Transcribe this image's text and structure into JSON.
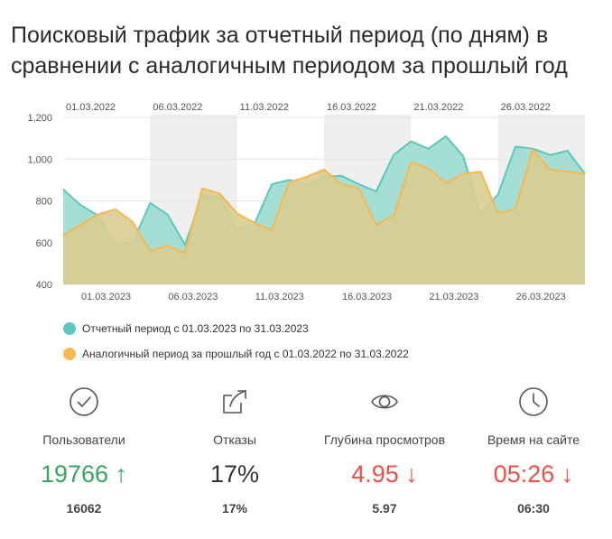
{
  "title": "Поисковый трафик за отчетный период (по дням) в сравнении с аналогичным периодом за прошлый год",
  "colors": {
    "current_fill": "#9fdcd3",
    "current_line": "#5cc8bc",
    "previous_fill": "#d9cd91",
    "previous_line": "#f7b84f",
    "weekend_band": "#efefef",
    "green": "#3aa563",
    "red": "#e8514a"
  },
  "chart_data": {
    "type": "area",
    "x": [
      "01.03",
      "02.03",
      "03.03",
      "04.03",
      "05.03",
      "06.03",
      "07.03",
      "08.03",
      "09.03",
      "10.03",
      "11.03",
      "12.03",
      "13.03",
      "14.03",
      "15.03",
      "16.03",
      "17.03",
      "18.03",
      "19.03",
      "20.03",
      "21.03",
      "22.03",
      "23.03",
      "24.03",
      "25.03",
      "26.03",
      "27.03",
      "28.03",
      "29.03",
      "30.03",
      "31.03"
    ],
    "series": [
      {
        "name": "Отчетный период с 01.03.2023 по 31.03.2023",
        "values": [
          855,
          780,
          730,
          590,
          600,
          790,
          735,
          590,
          825,
          820,
          665,
          690,
          880,
          900,
          880,
          915,
          920,
          880,
          845,
          1020,
          1085,
          1050,
          1110,
          1015,
          740,
          830,
          1060,
          1050,
          1020,
          1040,
          930
        ]
      },
      {
        "name": "Аналогичный период за прошлый год с 01.03.2022 по 31.03.2022",
        "values": [
          635,
          685,
          735,
          760,
          700,
          560,
          585,
          550,
          860,
          835,
          740,
          695,
          660,
          890,
          915,
          950,
          880,
          860,
          685,
          730,
          985,
          955,
          885,
          930,
          940,
          740,
          760,
          1045,
          950,
          940,
          930
        ]
      }
    ],
    "top_axis_labels": [
      "01.03.2022",
      "06.03.2022",
      "11.03.2022",
      "16.03.2022",
      "21.03.2022",
      "26.03.2022"
    ],
    "bottom_axis_labels": [
      "01.03.2023",
      "06.03.2023",
      "11.03.2023",
      "16.03.2023",
      "21.03.2023",
      "26.03.2023"
    ],
    "y_ticks": [
      "400",
      "600",
      "800",
      "1,000",
      "1,200"
    ],
    "ylim": [
      400,
      1200
    ],
    "weekend_bands_day_ranges": [
      [
        5,
        10
      ],
      [
        15,
        20
      ],
      [
        25,
        30
      ]
    ],
    "grid": true
  },
  "stats": [
    {
      "icon": "check-circle-icon",
      "label": "Пользователи",
      "value": "19766 ↑",
      "prev": "16062",
      "trend": "green"
    },
    {
      "icon": "share-icon",
      "label": "Отказы",
      "value": "17%",
      "prev": "17%",
      "trend": "neutral"
    },
    {
      "icon": "eye-icon",
      "label": "Глубина просмотров",
      "value": "4.95 ↓",
      "prev": "5.97",
      "trend": "red"
    },
    {
      "icon": "clock-icon",
      "label": "Время на сайте",
      "value": "05:26 ↓",
      "prev": "06:30",
      "trend": "red"
    }
  ]
}
